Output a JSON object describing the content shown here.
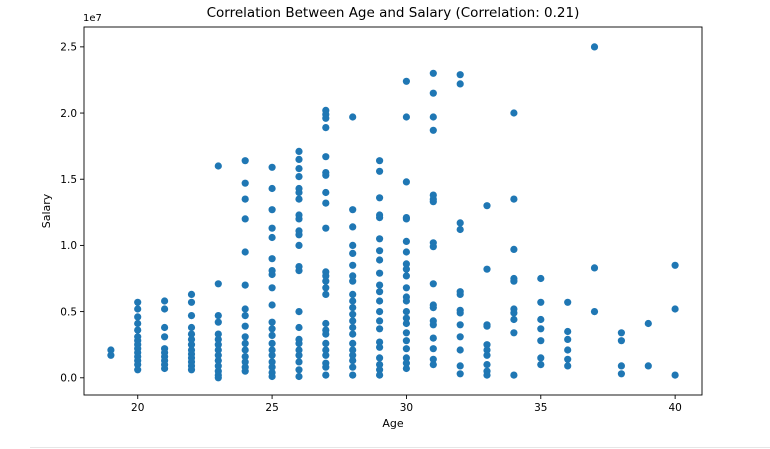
{
  "chart_data": {
    "type": "scatter",
    "title": "Correlation Between Age and Salary (Correlation: 0.21)",
    "xlabel": "Age",
    "ylabel": "Salary",
    "offset_text": "1e7",
    "xlim": [
      18,
      41
    ],
    "ylim": [
      -1300000,
      26500000
    ],
    "xticks": [
      20,
      25,
      30,
      35,
      40
    ],
    "xtick_labels": [
      "20",
      "25",
      "30",
      "35",
      "40"
    ],
    "yticks": [
      0,
      5000000,
      10000000,
      15000000,
      20000000,
      25000000
    ],
    "ytick_labels": [
      "0.0",
      "0.5",
      "1.0",
      "1.5",
      "2.0",
      "2.5"
    ],
    "grid": false,
    "marker_color": "#1f77b4",
    "points": [
      [
        19,
        2100000
      ],
      [
        19,
        1700000
      ],
      [
        20,
        5700000
      ],
      [
        20,
        5200000
      ],
      [
        20,
        4600000
      ],
      [
        20,
        4100000
      ],
      [
        20,
        3600000
      ],
      [
        20,
        3100000
      ],
      [
        20,
        2800000
      ],
      [
        20,
        2500000
      ],
      [
        20,
        2200000
      ],
      [
        20,
        1900000
      ],
      [
        20,
        1600000
      ],
      [
        20,
        1300000
      ],
      [
        20,
        1000000
      ],
      [
        20,
        600000
      ],
      [
        21,
        5800000
      ],
      [
        21,
        5200000
      ],
      [
        21,
        3800000
      ],
      [
        21,
        3100000
      ],
      [
        21,
        2200000
      ],
      [
        21,
        1900000
      ],
      [
        21,
        1600000
      ],
      [
        21,
        1300000
      ],
      [
        21,
        1000000
      ],
      [
        21,
        700000
      ],
      [
        22,
        6300000
      ],
      [
        22,
        5700000
      ],
      [
        22,
        4700000
      ],
      [
        22,
        3800000
      ],
      [
        22,
        3300000
      ],
      [
        22,
        2900000
      ],
      [
        22,
        2500000
      ],
      [
        22,
        2100000
      ],
      [
        22,
        1800000
      ],
      [
        22,
        1500000
      ],
      [
        22,
        1200000
      ],
      [
        22,
        900000
      ],
      [
        22,
        600000
      ],
      [
        23,
        16000000
      ],
      [
        23,
        7100000
      ],
      [
        23,
        4700000
      ],
      [
        23,
        4200000
      ],
      [
        23,
        3300000
      ],
      [
        23,
        2900000
      ],
      [
        23,
        2500000
      ],
      [
        23,
        2100000
      ],
      [
        23,
        1700000
      ],
      [
        23,
        1300000
      ],
      [
        23,
        900000
      ],
      [
        23,
        500000
      ],
      [
        23,
        200000
      ],
      [
        23,
        0
      ],
      [
        24,
        16400000
      ],
      [
        24,
        14700000
      ],
      [
        24,
        13500000
      ],
      [
        24,
        12000000
      ],
      [
        24,
        9500000
      ],
      [
        24,
        7000000
      ],
      [
        24,
        5200000
      ],
      [
        24,
        4700000
      ],
      [
        24,
        3900000
      ],
      [
        24,
        3100000
      ],
      [
        24,
        2600000
      ],
      [
        24,
        2100000
      ],
      [
        24,
        1600000
      ],
      [
        24,
        1200000
      ],
      [
        24,
        800000
      ],
      [
        24,
        500000
      ],
      [
        25,
        15900000
      ],
      [
        25,
        14300000
      ],
      [
        25,
        12700000
      ],
      [
        25,
        11300000
      ],
      [
        25,
        10600000
      ],
      [
        25,
        9000000
      ],
      [
        25,
        8100000
      ],
      [
        25,
        7800000
      ],
      [
        25,
        6800000
      ],
      [
        25,
        5500000
      ],
      [
        25,
        4200000
      ],
      [
        25,
        3700000
      ],
      [
        25,
        3200000
      ],
      [
        25,
        2600000
      ],
      [
        25,
        2100000
      ],
      [
        25,
        1700000
      ],
      [
        25,
        1200000
      ],
      [
        25,
        800000
      ],
      [
        25,
        400000
      ],
      [
        25,
        100000
      ],
      [
        26,
        17100000
      ],
      [
        26,
        16500000
      ],
      [
        26,
        15800000
      ],
      [
        26,
        15200000
      ],
      [
        26,
        14300000
      ],
      [
        26,
        14000000
      ],
      [
        26,
        13500000
      ],
      [
        26,
        12300000
      ],
      [
        26,
        12000000
      ],
      [
        26,
        11100000
      ],
      [
        26,
        10800000
      ],
      [
        26,
        10000000
      ],
      [
        26,
        8400000
      ],
      [
        26,
        8100000
      ],
      [
        26,
        5000000
      ],
      [
        26,
        3800000
      ],
      [
        26,
        2900000
      ],
      [
        26,
        2600000
      ],
      [
        26,
        2100000
      ],
      [
        26,
        1700000
      ],
      [
        26,
        1200000
      ],
      [
        26,
        600000
      ],
      [
        26,
        100000
      ],
      [
        27,
        20200000
      ],
      [
        27,
        19900000
      ],
      [
        27,
        19600000
      ],
      [
        27,
        18900000
      ],
      [
        27,
        16700000
      ],
      [
        27,
        15500000
      ],
      [
        27,
        15300000
      ],
      [
        27,
        14000000
      ],
      [
        27,
        13200000
      ],
      [
        27,
        11300000
      ],
      [
        27,
        8000000
      ],
      [
        27,
        7700000
      ],
      [
        27,
        7300000
      ],
      [
        27,
        6800000
      ],
      [
        27,
        6300000
      ],
      [
        27,
        4100000
      ],
      [
        27,
        3600000
      ],
      [
        27,
        3300000
      ],
      [
        27,
        2600000
      ],
      [
        27,
        2100000
      ],
      [
        27,
        1700000
      ],
      [
        27,
        1100000
      ],
      [
        27,
        800000
      ],
      [
        27,
        200000
      ],
      [
        28,
        19700000
      ],
      [
        28,
        12700000
      ],
      [
        28,
        11400000
      ],
      [
        28,
        10000000
      ],
      [
        28,
        9400000
      ],
      [
        28,
        8500000
      ],
      [
        28,
        7700000
      ],
      [
        28,
        7300000
      ],
      [
        28,
        6300000
      ],
      [
        28,
        5800000
      ],
      [
        28,
        5300000
      ],
      [
        28,
        4800000
      ],
      [
        28,
        4300000
      ],
      [
        28,
        3800000
      ],
      [
        28,
        3300000
      ],
      [
        28,
        2600000
      ],
      [
        28,
        2100000
      ],
      [
        28,
        1700000
      ],
      [
        28,
        1300000
      ],
      [
        28,
        800000
      ],
      [
        28,
        200000
      ],
      [
        29,
        16400000
      ],
      [
        29,
        15600000
      ],
      [
        29,
        13600000
      ],
      [
        29,
        12300000
      ],
      [
        29,
        12100000
      ],
      [
        29,
        10500000
      ],
      [
        29,
        9600000
      ],
      [
        29,
        8900000
      ],
      [
        29,
        7900000
      ],
      [
        29,
        7000000
      ],
      [
        29,
        6500000
      ],
      [
        29,
        5800000
      ],
      [
        29,
        5000000
      ],
      [
        29,
        4300000
      ],
      [
        29,
        3700000
      ],
      [
        29,
        2700000
      ],
      [
        29,
        2300000
      ],
      [
        29,
        1500000
      ],
      [
        29,
        1000000
      ],
      [
        29,
        600000
      ],
      [
        29,
        200000
      ],
      [
        30,
        22400000
      ],
      [
        30,
        19700000
      ],
      [
        30,
        14800000
      ],
      [
        30,
        12100000
      ],
      [
        30,
        12000000
      ],
      [
        30,
        10300000
      ],
      [
        30,
        9500000
      ],
      [
        30,
        8600000
      ],
      [
        30,
        8200000
      ],
      [
        30,
        7700000
      ],
      [
        30,
        6800000
      ],
      [
        30,
        6100000
      ],
      [
        30,
        5800000
      ],
      [
        30,
        5000000
      ],
      [
        30,
        4500000
      ],
      [
        30,
        4100000
      ],
      [
        30,
        3400000
      ],
      [
        30,
        2800000
      ],
      [
        30,
        2200000
      ],
      [
        30,
        1500000
      ],
      [
        30,
        1100000
      ],
      [
        30,
        700000
      ],
      [
        31,
        23000000
      ],
      [
        31,
        21500000
      ],
      [
        31,
        19700000
      ],
      [
        31,
        18700000
      ],
      [
        31,
        13800000
      ],
      [
        31,
        13500000
      ],
      [
        31,
        13300000
      ],
      [
        31,
        10200000
      ],
      [
        31,
        9900000
      ],
      [
        31,
        7100000
      ],
      [
        31,
        5500000
      ],
      [
        31,
        5300000
      ],
      [
        31,
        4300000
      ],
      [
        31,
        4000000
      ],
      [
        31,
        3000000
      ],
      [
        31,
        2200000
      ],
      [
        31,
        1400000
      ],
      [
        31,
        1000000
      ],
      [
        32,
        22900000
      ],
      [
        32,
        22200000
      ],
      [
        32,
        11700000
      ],
      [
        32,
        11200000
      ],
      [
        32,
        6500000
      ],
      [
        32,
        6300000
      ],
      [
        32,
        5100000
      ],
      [
        32,
        4900000
      ],
      [
        32,
        4000000
      ],
      [
        32,
        3100000
      ],
      [
        32,
        2100000
      ],
      [
        32,
        900000
      ],
      [
        32,
        300000
      ],
      [
        33,
        13000000
      ],
      [
        33,
        8200000
      ],
      [
        33,
        4000000
      ],
      [
        33,
        3900000
      ],
      [
        33,
        2500000
      ],
      [
        33,
        2100000
      ],
      [
        33,
        1700000
      ],
      [
        33,
        1000000
      ],
      [
        33,
        500000
      ],
      [
        33,
        200000
      ],
      [
        34,
        20000000
      ],
      [
        34,
        13500000
      ],
      [
        34,
        9700000
      ],
      [
        34,
        7500000
      ],
      [
        34,
        7300000
      ],
      [
        34,
        5200000
      ],
      [
        34,
        4900000
      ],
      [
        34,
        4400000
      ],
      [
        34,
        3400000
      ],
      [
        34,
        200000
      ],
      [
        35,
        7500000
      ],
      [
        35,
        5700000
      ],
      [
        35,
        4400000
      ],
      [
        35,
        3700000
      ],
      [
        35,
        2800000
      ],
      [
        35,
        1500000
      ],
      [
        35,
        1000000
      ],
      [
        36,
        5700000
      ],
      [
        36,
        3500000
      ],
      [
        36,
        2900000
      ],
      [
        36,
        2100000
      ],
      [
        36,
        1400000
      ],
      [
        36,
        900000
      ],
      [
        37,
        25000000
      ],
      [
        37,
        8300000
      ],
      [
        37,
        5000000
      ],
      [
        38,
        3400000
      ],
      [
        38,
        2800000
      ],
      [
        38,
        900000
      ],
      [
        38,
        300000
      ],
      [
        39,
        4100000
      ],
      [
        39,
        900000
      ],
      [
        40,
        8500000
      ],
      [
        40,
        5200000
      ],
      [
        40,
        200000
      ]
    ]
  }
}
